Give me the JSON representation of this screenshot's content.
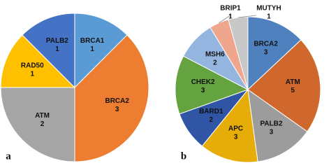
{
  "chart_data": [
    {
      "type": "pie",
      "label": "a",
      "categories": [
        "BRCA1",
        "BRCA2",
        "ATM",
        "RAD50",
        "PALB2"
      ],
      "values": [
        1,
        3,
        2,
        1,
        1
      ],
      "colors": [
        "#5b9bd5",
        "#ed7d31",
        "#a5a5a5",
        "#ffc000",
        "#4472c4"
      ]
    },
    {
      "type": "pie",
      "label": "b",
      "categories": [
        "BRCA2",
        "ATM",
        "PALB2",
        "APC",
        "BARD1",
        "CHEK2",
        "MSH6",
        "BRIP1",
        "MUTYH"
      ],
      "values": [
        3,
        5,
        3,
        3,
        2,
        3,
        2,
        1,
        1
      ],
      "colors": [
        "#4e81bd",
        "#d0672c",
        "#9c9c9c",
        "#e6ac07",
        "#2f55a4",
        "#64a33f",
        "#94b5e0",
        "#f0a58d",
        "#c8c8c8"
      ]
    }
  ]
}
